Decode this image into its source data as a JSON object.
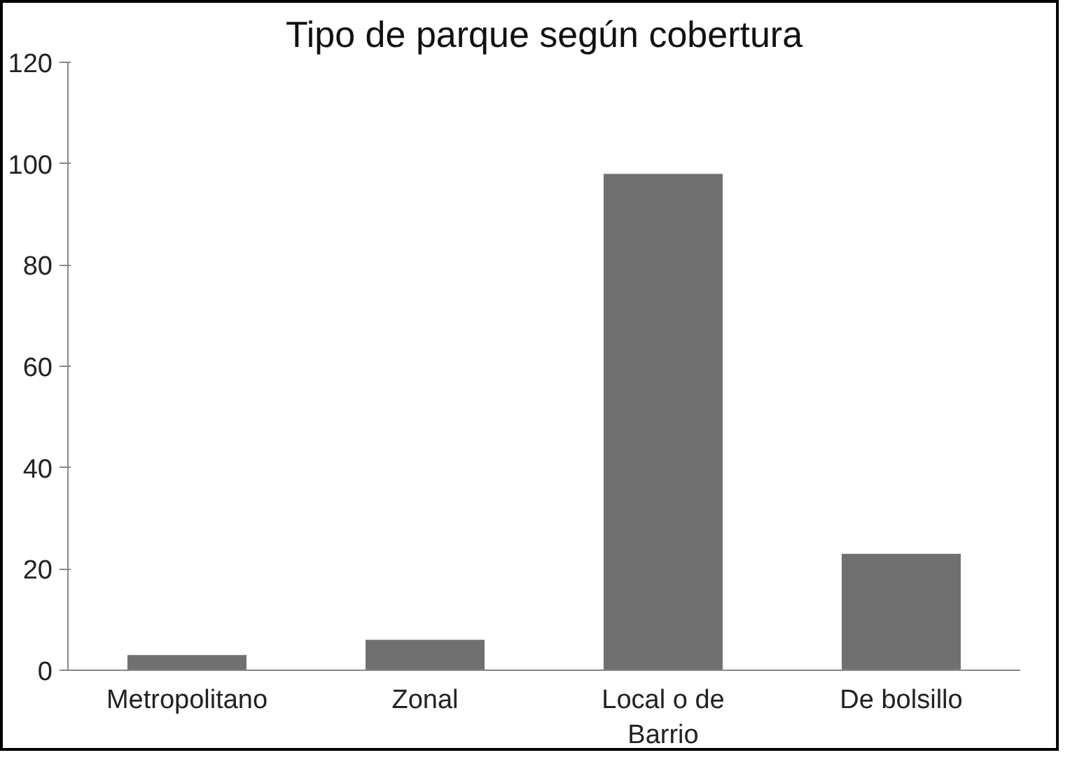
{
  "chart_data": {
    "type": "bar",
    "title": "Tipo de parque según cobertura",
    "categories": [
      "Metropolitano",
      "Zonal",
      "Local o de Barrio",
      "De bolsillo"
    ],
    "values": [
      3,
      6,
      98,
      23
    ],
    "color": "#707070",
    "ylim": [
      0,
      120
    ],
    "yticks": [
      0,
      20,
      40,
      60,
      80,
      100,
      120
    ],
    "grid": false
  }
}
